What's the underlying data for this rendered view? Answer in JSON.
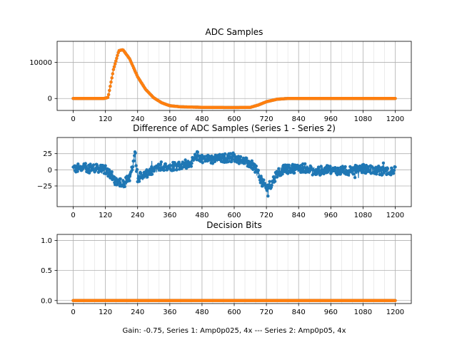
{
  "figure_note": "Gain: -0.75, Series 1: Amp0p025, 4x --- Series 2: Amp0p05, 4x",
  "colors": {
    "blue": "#1f77b4",
    "orange": "#ff7f0e",
    "grid": "#b0b0b0"
  },
  "chart_data": [
    {
      "type": "line",
      "title": "ADC Samples",
      "xlabel": "",
      "ylabel": "",
      "xlim": [
        -60,
        1260
      ],
      "ylim": [
        -3300,
        15800
      ],
      "x_ticks": [
        0,
        120,
        240,
        360,
        480,
        600,
        720,
        840,
        960,
        1080,
        1200
      ],
      "y_ticks": [
        0,
        10000
      ],
      "y_tick_labels": [
        "0",
        "10000"
      ],
      "grid": true,
      "series": [
        {
          "name": "Series 1",
          "color": "#1f77b4",
          "marker": "dot",
          "x": [
            0,
            115,
            130,
            150,
            170,
            185,
            210,
            240,
            270,
            300,
            330,
            360,
            400,
            480,
            600,
            660,
            690,
            720,
            760,
            800,
            840,
            960,
            1200
          ],
          "values": [
            0,
            0,
            300,
            8000,
            13200,
            13500,
            11000,
            6000,
            2500,
            200,
            -1200,
            -2000,
            -2300,
            -2450,
            -2500,
            -2450,
            -1800,
            -900,
            -200,
            0,
            0,
            0,
            0
          ]
        },
        {
          "name": "Series 2",
          "color": "#ff7f0e",
          "marker": "dot",
          "x": [
            0,
            115,
            130,
            150,
            170,
            185,
            210,
            240,
            270,
            300,
            330,
            360,
            400,
            480,
            600,
            660,
            690,
            720,
            760,
            800,
            840,
            960,
            1200
          ],
          "values": [
            0,
            0,
            300,
            8000,
            13200,
            13500,
            11000,
            6000,
            2500,
            200,
            -1200,
            -2000,
            -2300,
            -2450,
            -2500,
            -2450,
            -1800,
            -900,
            -200,
            0,
            0,
            0,
            0
          ]
        }
      ]
    },
    {
      "type": "line",
      "title": "Difference of ADC Samples (Series 1 - Series 2)",
      "xlabel": "",
      "ylabel": "",
      "xlim": [
        -60,
        1260
      ],
      "ylim": [
        -57,
        50
      ],
      "x_ticks": [
        0,
        120,
        240,
        360,
        480,
        600,
        720,
        840,
        960,
        1080,
        1200
      ],
      "y_ticks": [
        -25,
        0,
        25
      ],
      "y_tick_labels": [
        "−25",
        "0",
        "25"
      ],
      "grid": true,
      "series": [
        {
          "name": "Series 1 - Series 2",
          "color": "#1f77b4",
          "marker": "dot",
          "x": [
            0,
            60,
            120,
            140,
            160,
            190,
            215,
            230,
            240,
            270,
            300,
            330,
            360,
            400,
            440,
            460,
            480,
            520,
            560,
            600,
            640,
            660,
            680,
            700,
            720,
            740,
            760,
            780,
            820,
            860,
            900,
            960,
            1020,
            1080,
            1140,
            1200
          ],
          "values": [
            2,
            3,
            0,
            -8,
            -18,
            -20,
            -10,
            28,
            -12,
            -8,
            0,
            6,
            5,
            8,
            10,
            22,
            18,
            16,
            18,
            20,
            12,
            10,
            2,
            -15,
            -30,
            -20,
            -5,
            0,
            2,
            3,
            -2,
            0,
            -2,
            2,
            -1,
            -2
          ],
          "noise_amplitude": 7
        }
      ]
    },
    {
      "type": "line",
      "title": "Decision Bits",
      "xlabel": "Gain: -0.75, Series 1: Amp0p025, 4x --- Series 2: Amp0p05, 4x",
      "ylabel": "",
      "xlim": [
        -60,
        1260
      ],
      "ylim": [
        -0.05,
        1.1
      ],
      "x_ticks": [
        0,
        120,
        240,
        360,
        480,
        600,
        720,
        840,
        960,
        1080,
        1200
      ],
      "y_ticks": [
        0.0,
        0.5,
        1.0
      ],
      "y_tick_labels": [
        "0.0",
        "0.5",
        "1.0"
      ],
      "grid": true,
      "series": [
        {
          "name": "Series 1",
          "color": "#1f77b4",
          "marker": "dot",
          "x": [
            0,
            1200
          ],
          "values": [
            0,
            0
          ]
        },
        {
          "name": "Series 2",
          "color": "#ff7f0e",
          "marker": "dot",
          "x": [
            0,
            1200
          ],
          "values": [
            0,
            0
          ]
        }
      ]
    }
  ]
}
